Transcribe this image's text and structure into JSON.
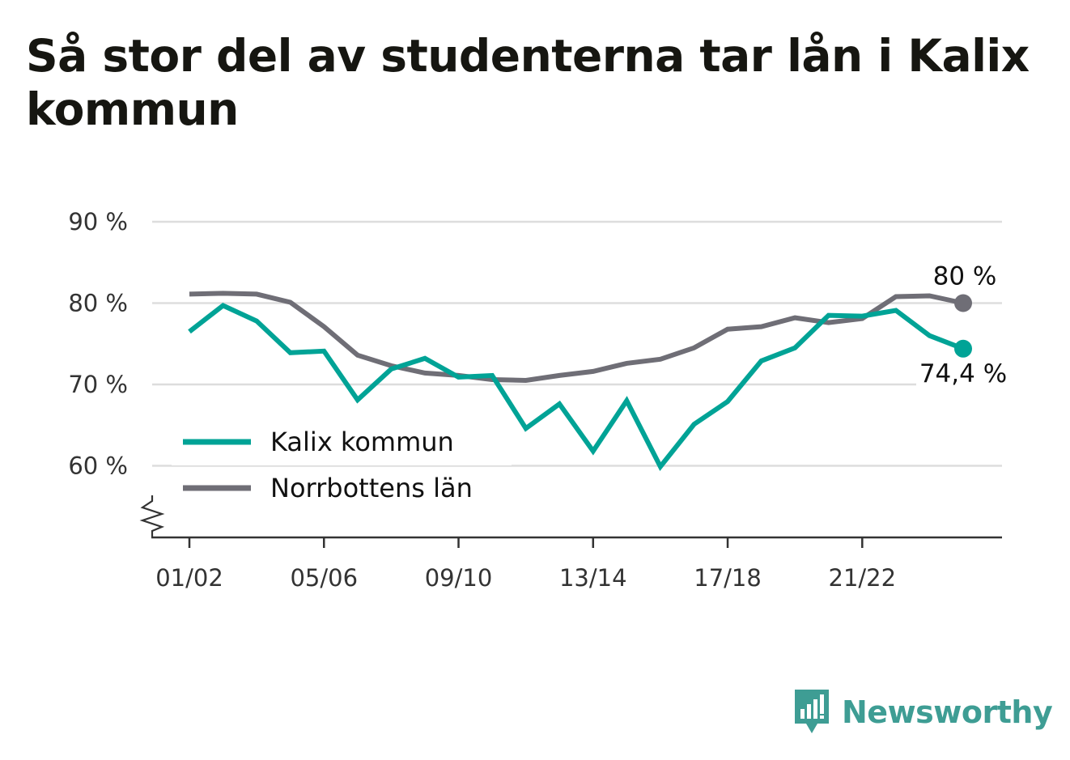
{
  "title": "Så stor del av studenterna tar lån i Kalix kommun",
  "colors": {
    "kalix": "#00a396",
    "norrbotten": "#6f6e76",
    "grid": "#dddddd",
    "axis": "#333333",
    "logo": "#3e9d94"
  },
  "logo_text": "Newsworthy",
  "chart_data": {
    "type": "line",
    "title": "Så stor del av studenterna tar lån i Kalix kommun",
    "xlabel": "",
    "ylabel": "",
    "ylim": [
      51,
      90
    ],
    "yticks": [
      60,
      70,
      80,
      90
    ],
    "ytick_labels": [
      "60 %",
      "70 %",
      "80 %",
      "90 %"
    ],
    "axis_break": true,
    "grid": true,
    "legend_position": "bottom-left",
    "categories": [
      "01/02",
      "02/03",
      "03/04",
      "04/05",
      "05/06",
      "06/07",
      "07/08",
      "08/09",
      "09/10",
      "10/11",
      "11/12",
      "12/13",
      "13/14",
      "14/15",
      "15/16",
      "16/17",
      "17/18",
      "18/19",
      "19/20",
      "20/21",
      "21/22",
      "22/23",
      "23/24",
      "24/25"
    ],
    "xtick_labels": [
      "01/02",
      "05/06",
      "09/10",
      "13/14",
      "17/18",
      "21/22"
    ],
    "xtick_indices": [
      0,
      4,
      8,
      12,
      16,
      20
    ],
    "series": [
      {
        "name": "Kalix kommun",
        "color": "#00a396",
        "values": [
          76.5,
          79.7,
          77.8,
          73.9,
          74.1,
          68.1,
          71.9,
          73.2,
          70.9,
          71.1,
          64.6,
          67.6,
          61.8,
          68.0,
          59.9,
          65.1,
          67.9,
          72.9,
          74.5,
          78.5,
          78.4,
          79.1,
          76.0,
          74.4
        ],
        "end_label": "74,4 %"
      },
      {
        "name": "Norrbottens län",
        "color": "#6f6e76",
        "values": [
          81.1,
          81.2,
          81.1,
          80.1,
          77.1,
          73.6,
          72.3,
          71.4,
          71.1,
          70.6,
          70.5,
          71.1,
          71.6,
          72.6,
          73.1,
          74.5,
          76.8,
          77.1,
          78.2,
          77.6,
          78.1,
          80.8,
          80.9,
          80.0
        ],
        "end_label": "80 %"
      }
    ]
  }
}
